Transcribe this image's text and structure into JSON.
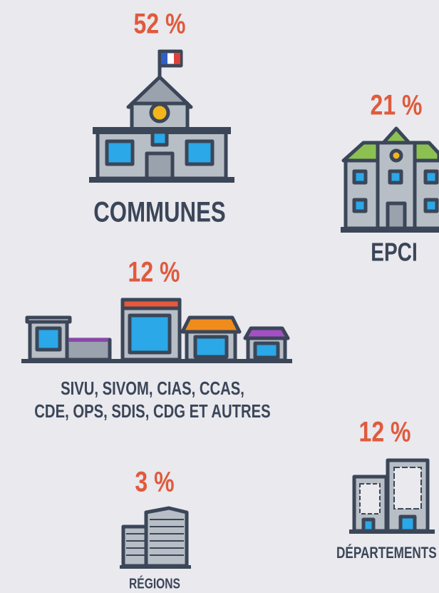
{
  "items": [
    {
      "percent": "52 %",
      "label": "COMMUNES"
    },
    {
      "percent": "21 %",
      "label": "EPCI"
    },
    {
      "percent": "12 %",
      "label_lines": [
        "SIVU, SIVOM, CIAS, CCAS,",
        "CDE, OPS, SDIS, CDG ET AUTRES"
      ]
    },
    {
      "percent": "12 %",
      "label": "DÉPARTEMENTS"
    },
    {
      "percent": "3 %",
      "label": "RÉGIONS"
    }
  ]
}
